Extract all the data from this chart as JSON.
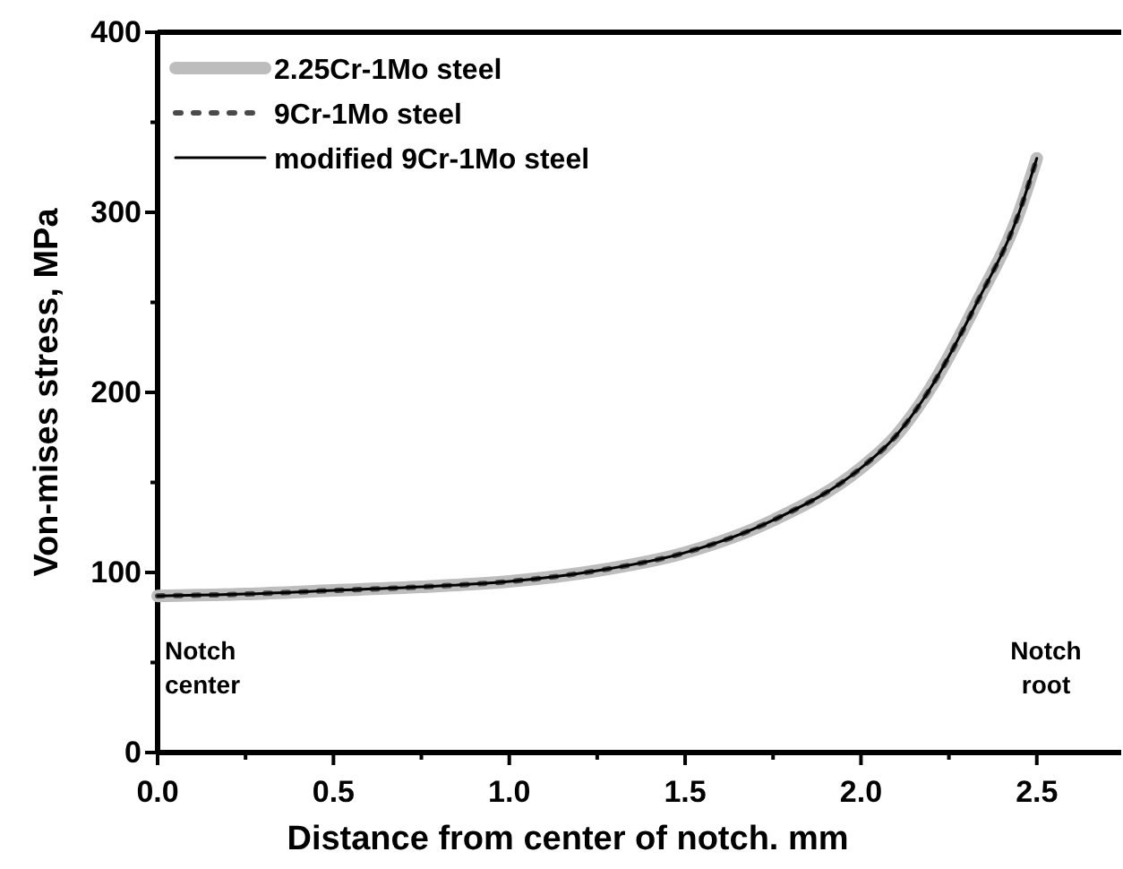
{
  "chart_data": {
    "type": "line",
    "xlabel": "Distance from center of notch. mm",
    "ylabel": "Von-mises stress, MPa",
    "x": [
      0,
      0.25,
      0.5,
      0.75,
      1.0,
      1.25,
      1.5,
      1.75,
      2.0,
      2.1,
      2.19,
      2.33,
      2.45,
      2.5
    ],
    "series": [
      {
        "name": "2.25Cr-1Mo steel",
        "color": "#bdbdbd",
        "line_style": "solid",
        "values": [
          87,
          88,
          90,
          92,
          95,
          101,
          111,
          129,
          158,
          176,
          200,
          250,
          300,
          330
        ]
      },
      {
        "name": "9Cr-1Mo steel",
        "color": "#4a4a4a",
        "line_style": "dotted",
        "values": [
          87,
          88,
          90,
          92,
          95,
          101,
          111,
          129,
          158,
          176,
          200,
          250,
          300,
          330
        ]
      },
      {
        "name": "modified 9Cr-1Mo steel",
        "color": "#000000",
        "line_style": "solid",
        "values": [
          87,
          88,
          90,
          92,
          95,
          101,
          111,
          129,
          158,
          176,
          200,
          250,
          300,
          330
        ]
      }
    ],
    "xlim": [
      0,
      2.74
    ],
    "ylim": [
      0,
      400
    ],
    "xticks": [
      {
        "value": 0,
        "label": "0.0"
      },
      {
        "value": 0.25,
        "label": null
      },
      {
        "value": 0.5,
        "label": "0.5"
      },
      {
        "value": 0.75,
        "label": null
      },
      {
        "value": 1,
        "label": "1.0"
      },
      {
        "value": 1.25,
        "label": null
      },
      {
        "value": 1.5,
        "label": "1.5"
      },
      {
        "value": 1.75,
        "label": null
      },
      {
        "value": 2,
        "label": "2.0"
      },
      {
        "value": 2.25,
        "label": null
      },
      {
        "value": 2.5,
        "label": "2.5"
      }
    ],
    "yticks": [
      0,
      {
        "value": 50,
        "label": null
      },
      100,
      {
        "value": 150,
        "label": null
      },
      200,
      {
        "value": 250,
        "label": null
      },
      300,
      {
        "value": 350,
        "label": null
      },
      400
    ],
    "annotations": [
      "Notch center",
      "Notch root"
    ],
    "legend": "top left",
    "grid": false
  }
}
